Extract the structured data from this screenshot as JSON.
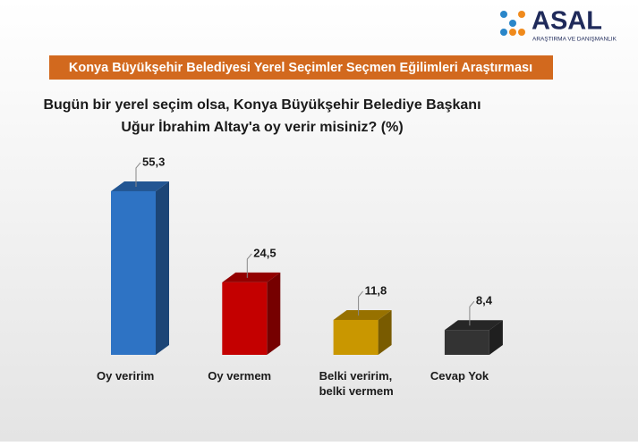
{
  "logo": {
    "name": "ASAL",
    "tagline": "ARAŞTIRMA VE DANIŞMANLIK"
  },
  "chart_data": {
    "type": "bar3d",
    "title": "Konya Büyükşehir Belediyesi Yerel Seçimler Seçmen Eğilimleri Araştırması",
    "subtitle": [
      "Bugün bir yerel seçim olsa, Konya Büyükşehir Belediye Başkanı",
      "Uğur İbrahim Altay'a oy verir misiniz? (%)"
    ],
    "categories": [
      [
        "Oy veririm"
      ],
      [
        "Oy vermem"
      ],
      [
        "Belki veririm,",
        "belki vermem"
      ],
      [
        "Cevap Yok"
      ]
    ],
    "values": [
      55.3,
      24.5,
      11.8,
      8.4
    ],
    "value_labels": [
      "55,3",
      "24,5",
      "11,8",
      "8,4"
    ],
    "colors": [
      "#2e73c4",
      "#c40000",
      "#c99700",
      "#333333"
    ]
  }
}
